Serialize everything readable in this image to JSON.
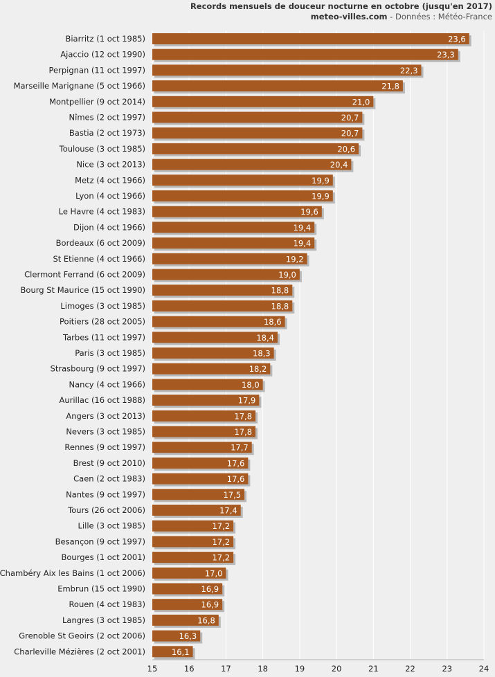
{
  "header": {
    "title": "Records mensuels de douceur nocturne en octobre (jusqu'en 2017)",
    "site": "meteo-villes.com",
    "source": " - Données : Météo-France"
  },
  "colors": {
    "bar": "#a65a22",
    "bar_shadow": "#8a8a8a",
    "grid": "#ffffff",
    "background": "#efefef"
  },
  "chart_data": {
    "type": "bar",
    "orientation": "horizontal",
    "title": "Records mensuels de douceur nocturne en octobre (jusqu'en 2017)",
    "xlim": [
      15,
      24
    ],
    "xticks": [
      15,
      16,
      17,
      18,
      19,
      20,
      21,
      22,
      23,
      24
    ],
    "grid": true,
    "categories": [
      "Biarritz (1 oct 1985)",
      "Ajaccio (12 oct 1990)",
      "Perpignan (11 oct 1997)",
      "Marseille Marignane (5 oct 1966)",
      "Montpellier (9 oct 2014)",
      "Nîmes (2 oct 1997)",
      "Bastia (2 oct 1973)",
      "Toulouse (3 oct 1985)",
      "Nice (3 oct 2013)",
      "Metz (4 oct 1966)",
      "Lyon (4 oct 1966)",
      "Le Havre (4 oct 1983)",
      "Dijon (4 oct 1966)",
      "Bordeaux (6 oct 2009)",
      "St Etienne (4 oct 1966)",
      "Clermont Ferrand (6 oct 2009)",
      "Bourg St Maurice (15 oct 1990)",
      "Limoges (3 oct 1985)",
      "Poitiers (28 oct 2005)",
      "Tarbes (11 oct 1997)",
      "Paris (3 oct 1985)",
      "Strasbourg (9 oct 1997)",
      "Nancy (4 oct 1966)",
      "Aurillac (16 oct 1988)",
      "Angers (3 oct 2013)",
      "Nevers (3 oct 1985)",
      "Rennes (9 oct 1997)",
      "Brest (9 oct 2010)",
      "Caen (2 oct 1983)",
      "Nantes (9 oct 1997)",
      "Tours (26 oct 2006)",
      "Lille (3 oct 1985)",
      "Besançon (9 oct 1997)",
      "Bourges (1 oct 2001)",
      "Chambéry Aix les Bains (1 oct 2006)",
      "Embrun (15 oct 1990)",
      "Rouen (4 oct 1983)",
      "Langres (3 oct 1985)",
      "Grenoble St Geoirs (2 oct 2006)",
      "Charleville Mézières (2 oct 2001)"
    ],
    "values": [
      23.6,
      23.3,
      22.3,
      21.8,
      21.0,
      20.7,
      20.7,
      20.6,
      20.4,
      19.9,
      19.9,
      19.6,
      19.4,
      19.4,
      19.2,
      19.0,
      18.8,
      18.8,
      18.6,
      18.4,
      18.3,
      18.2,
      18.0,
      17.9,
      17.8,
      17.8,
      17.7,
      17.6,
      17.6,
      17.5,
      17.4,
      17.2,
      17.2,
      17.2,
      17.0,
      16.9,
      16.9,
      16.8,
      16.3,
      16.1
    ],
    "value_labels": [
      "23,6",
      "23,3",
      "22,3",
      "21,8",
      "21,0",
      "20,7",
      "20,7",
      "20,6",
      "20,4",
      "19,9",
      "19,9",
      "19,6",
      "19,4",
      "19,4",
      "19,2",
      "19,0",
      "18,8",
      "18,8",
      "18,6",
      "18,4",
      "18,3",
      "18,2",
      "18,0",
      "17,9",
      "17,8",
      "17,8",
      "17,7",
      "17,6",
      "17,6",
      "17,5",
      "17,4",
      "17,2",
      "17,2",
      "17,2",
      "17,0",
      "16,9",
      "16,9",
      "16,8",
      "16,3",
      "16,1"
    ]
  }
}
